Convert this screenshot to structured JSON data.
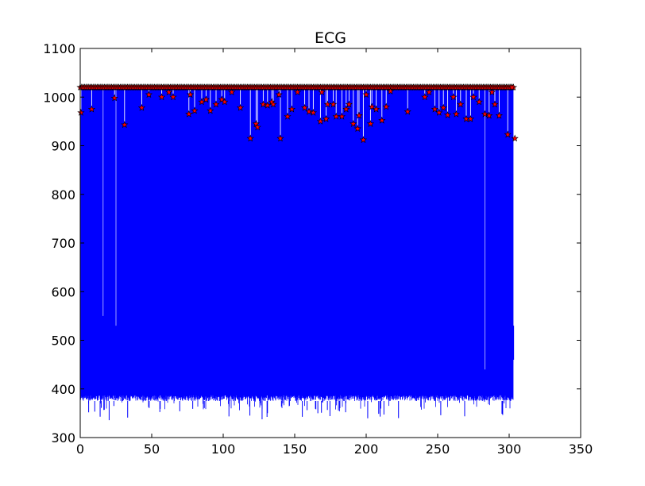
{
  "chart_data": {
    "type": "line",
    "title": "ECG",
    "xlabel": "",
    "ylabel": "",
    "xlim": [
      0,
      350
    ],
    "ylim": [
      300,
      1100
    ],
    "xticks": [
      0,
      50,
      100,
      150,
      200,
      250,
      300,
      350
    ],
    "yticks": [
      300,
      400,
      500,
      600,
      700,
      800,
      900,
      1000,
      1100
    ],
    "grid": false,
    "legend": "none",
    "series": [
      {
        "kind": "signal",
        "color": "#0000ff",
        "x_range": [
          0,
          303
        ],
        "upper": 1020,
        "lower_typical": 375,
        "lower_min": 335,
        "dense_low_band": [
          380,
          530
        ],
        "spikes": [
          {
            "x": 16,
            "y": 550
          },
          {
            "x": 25,
            "y": 530
          },
          {
            "x": 283,
            "y": 440
          }
        ],
        "end_tail": [
          {
            "x": 302,
            "y": 400
          },
          {
            "x": 303,
            "y": 530
          },
          {
            "x": 303,
            "y": 460
          }
        ]
      },
      {
        "kind": "peaks",
        "marker": "star",
        "color": "#ff0000",
        "edge_color": "#000000",
        "points": [
          {
            "x": 0.5,
            "y": 968
          },
          {
            "x": 8,
            "y": 975
          },
          {
            "x": 24,
            "y": 998
          },
          {
            "x": 31,
            "y": 943
          },
          {
            "x": 43,
            "y": 978
          },
          {
            "x": 48,
            "y": 1005
          },
          {
            "x": 57,
            "y": 1000
          },
          {
            "x": 62,
            "y": 1010
          },
          {
            "x": 65,
            "y": 1000
          },
          {
            "x": 76,
            "y": 965
          },
          {
            "x": 77,
            "y": 1005
          },
          {
            "x": 80,
            "y": 972
          },
          {
            "x": 85,
            "y": 990
          },
          {
            "x": 88,
            "y": 995
          },
          {
            "x": 91,
            "y": 972
          },
          {
            "x": 95,
            "y": 985
          },
          {
            "x": 99,
            "y": 995
          },
          {
            "x": 101,
            "y": 990
          },
          {
            "x": 106,
            "y": 1010
          },
          {
            "x": 112,
            "y": 978
          },
          {
            "x": 119,
            "y": 915
          },
          {
            "x": 123,
            "y": 945
          },
          {
            "x": 124,
            "y": 938
          },
          {
            "x": 128,
            "y": 985
          },
          {
            "x": 131,
            "y": 983
          },
          {
            "x": 134,
            "y": 990
          },
          {
            "x": 135,
            "y": 985
          },
          {
            "x": 139,
            "y": 1005
          },
          {
            "x": 140,
            "y": 915
          },
          {
            "x": 145,
            "y": 960
          },
          {
            "x": 148,
            "y": 975
          },
          {
            "x": 152,
            "y": 1010
          },
          {
            "x": 157,
            "y": 978
          },
          {
            "x": 160,
            "y": 970
          },
          {
            "x": 163,
            "y": 968
          },
          {
            "x": 168,
            "y": 950
          },
          {
            "x": 169,
            "y": 1010
          },
          {
            "x": 172,
            "y": 955
          },
          {
            "x": 173,
            "y": 985
          },
          {
            "x": 177,
            "y": 985
          },
          {
            "x": 179,
            "y": 960
          },
          {
            "x": 183,
            "y": 960
          },
          {
            "x": 186,
            "y": 975
          },
          {
            "x": 188,
            "y": 985
          },
          {
            "x": 191,
            "y": 945
          },
          {
            "x": 194,
            "y": 935
          },
          {
            "x": 195,
            "y": 962
          },
          {
            "x": 198,
            "y": 912
          },
          {
            "x": 200,
            "y": 1005
          },
          {
            "x": 203,
            "y": 945
          },
          {
            "x": 204,
            "y": 980
          },
          {
            "x": 207,
            "y": 975
          },
          {
            "x": 211,
            "y": 952
          },
          {
            "x": 214,
            "y": 980
          },
          {
            "x": 217,
            "y": 1012
          },
          {
            "x": 229,
            "y": 970
          },
          {
            "x": 241,
            "y": 1000
          },
          {
            "x": 244,
            "y": 1010
          },
          {
            "x": 248,
            "y": 975
          },
          {
            "x": 251,
            "y": 968
          },
          {
            "x": 254,
            "y": 978
          },
          {
            "x": 257,
            "y": 963
          },
          {
            "x": 261,
            "y": 1000
          },
          {
            "x": 263,
            "y": 965
          },
          {
            "x": 266,
            "y": 985
          },
          {
            "x": 270,
            "y": 955
          },
          {
            "x": 273,
            "y": 955
          },
          {
            "x": 275,
            "y": 1000
          },
          {
            "x": 279,
            "y": 990
          },
          {
            "x": 283,
            "y": 965
          },
          {
            "x": 286,
            "y": 962
          },
          {
            "x": 288,
            "y": 1010
          },
          {
            "x": 290,
            "y": 985
          },
          {
            "x": 293,
            "y": 962
          },
          {
            "x": 299,
            "y": 923
          },
          {
            "x": 302,
            "y": 1020
          },
          {
            "x": 304,
            "y": 915
          }
        ]
      }
    ]
  }
}
